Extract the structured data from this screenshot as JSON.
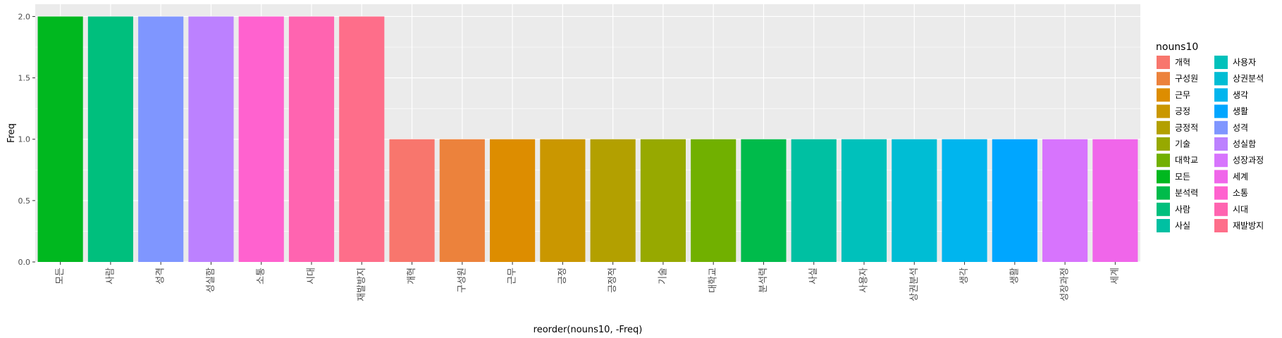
{
  "chart_data": {
    "type": "bar",
    "xlabel": "reorder(nouns10, -Freq)",
    "ylabel": "Freq",
    "ylim": [
      0,
      2.1
    ],
    "yticks": [
      0.0,
      0.5,
      1.0,
      1.5,
      2.0
    ],
    "ytick_labels": [
      "0.0",
      "0.5",
      "1.0",
      "1.5",
      "2.0"
    ],
    "grid": true,
    "legend_position": "right",
    "legend_title": "nouns10",
    "categories": [
      "모든",
      "사람",
      "성격",
      "성실함",
      "소통",
      "시대",
      "재발방지",
      "개혁",
      "구성원",
      "근무",
      "긍정",
      "긍정적",
      "기술",
      "대학교",
      "분석력",
      "사실",
      "사용자",
      "상권분석",
      "생각",
      "생활",
      "성장과정",
      "세계"
    ],
    "values": [
      2,
      2,
      2,
      2,
      2,
      2,
      2,
      1,
      1,
      1,
      1,
      1,
      1,
      1,
      1,
      1,
      1,
      1,
      1,
      1,
      1,
      1
    ],
    "legend": [
      {
        "label": "개혁",
        "color": "#F8766D"
      },
      {
        "label": "구성원",
        "color": "#EC823C"
      },
      {
        "label": "근무",
        "color": "#DD8D00"
      },
      {
        "label": "긍정",
        "color": "#CA9700"
      },
      {
        "label": "긍정적",
        "color": "#B3A000"
      },
      {
        "label": "기술",
        "color": "#97A900"
      },
      {
        "label": "대학교",
        "color": "#71B000"
      },
      {
        "label": "모든",
        "color": "#00B81F"
      },
      {
        "label": "분석력",
        "color": "#00BB4B"
      },
      {
        "label": "사람",
        "color": "#00BF7D"
      },
      {
        "label": "사실",
        "color": "#00C0A2"
      },
      {
        "label": "사용자",
        "color": "#00C1BB"
      },
      {
        "label": "상권분석",
        "color": "#00BDD4"
      },
      {
        "label": "생각",
        "color": "#00B5EE"
      },
      {
        "label": "생활",
        "color": "#00A6FF"
      },
      {
        "label": "성격",
        "color": "#7F96FF"
      },
      {
        "label": "성실함",
        "color": "#BC81FF"
      },
      {
        "label": "성장과정",
        "color": "#D774FD"
      },
      {
        "label": "세계",
        "color": "#F066EA"
      },
      {
        "label": "소통",
        "color": "#FF62CF"
      },
      {
        "label": "시대",
        "color": "#FF64B0"
      },
      {
        "label": "재발방지",
        "color": "#FE6E8A"
      }
    ]
  }
}
